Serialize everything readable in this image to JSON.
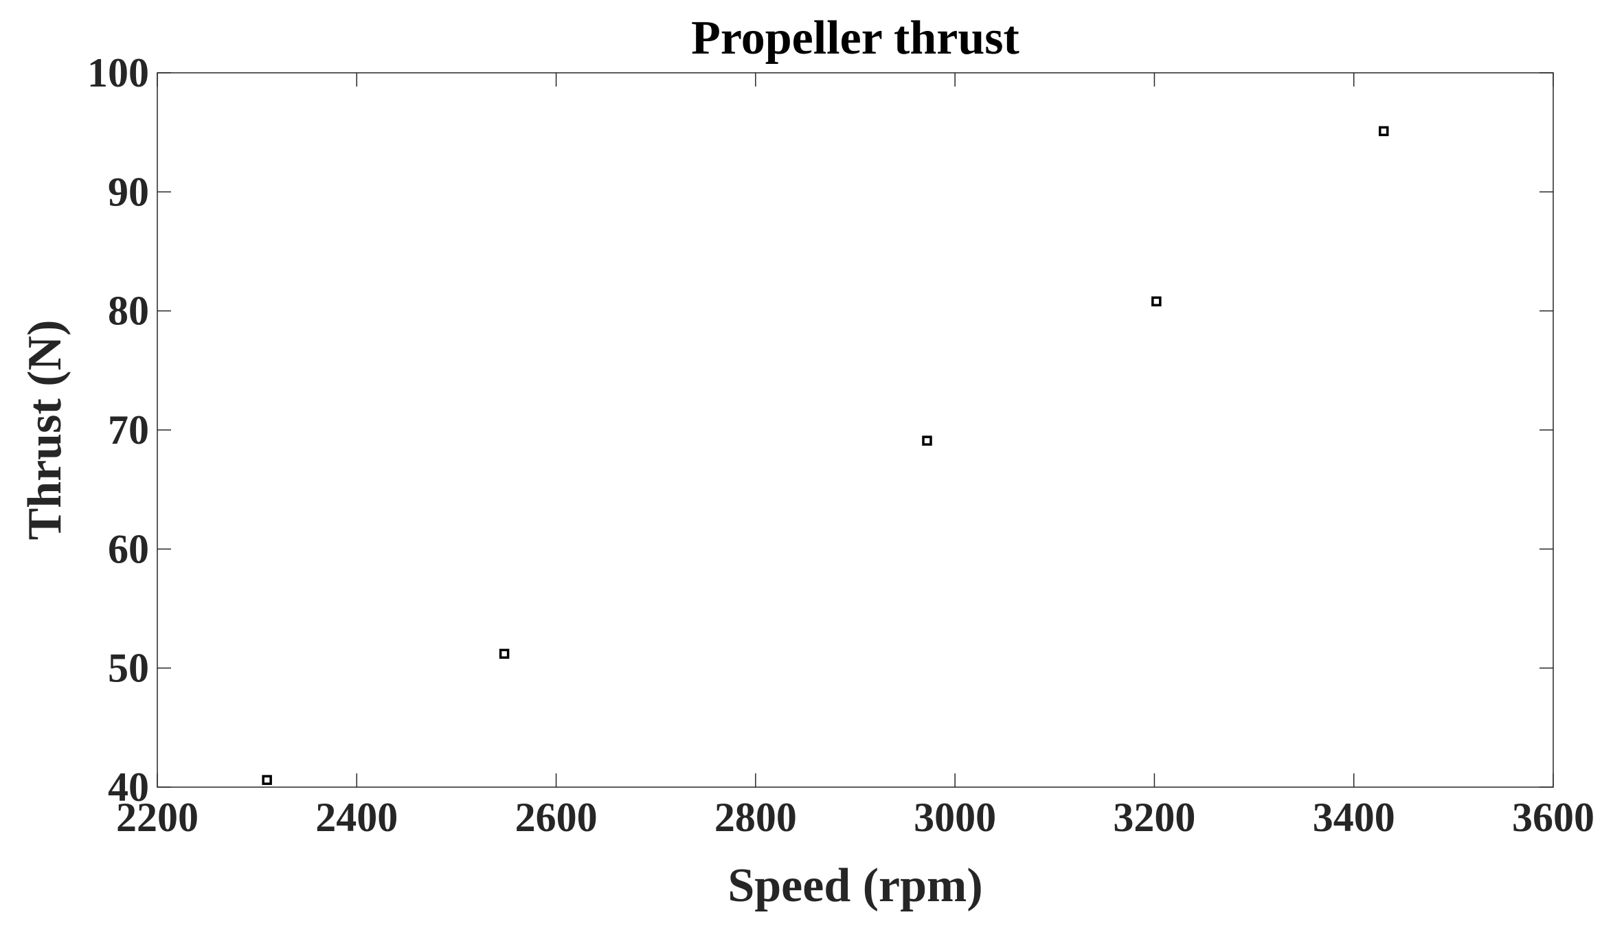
{
  "chart_data": {
    "type": "scatter",
    "title": "Propeller thrust",
    "xlabel": "Speed (rpm)",
    "ylabel": "Thrust (N)",
    "xlim": [
      2200,
      3600
    ],
    "ylim": [
      40,
      100
    ],
    "xticks": [
      2200,
      2400,
      2600,
      2800,
      3000,
      3200,
      3400,
      3600
    ],
    "yticks": [
      40,
      50,
      60,
      70,
      80,
      90,
      100
    ],
    "grid": false,
    "marker": "square",
    "marker_color": "#000000",
    "series": [
      {
        "x": [
          2310,
          2548,
          2972,
          3202,
          3430
        ],
        "y": [
          40.6,
          51.2,
          69.1,
          80.8,
          95.1
        ]
      }
    ]
  }
}
